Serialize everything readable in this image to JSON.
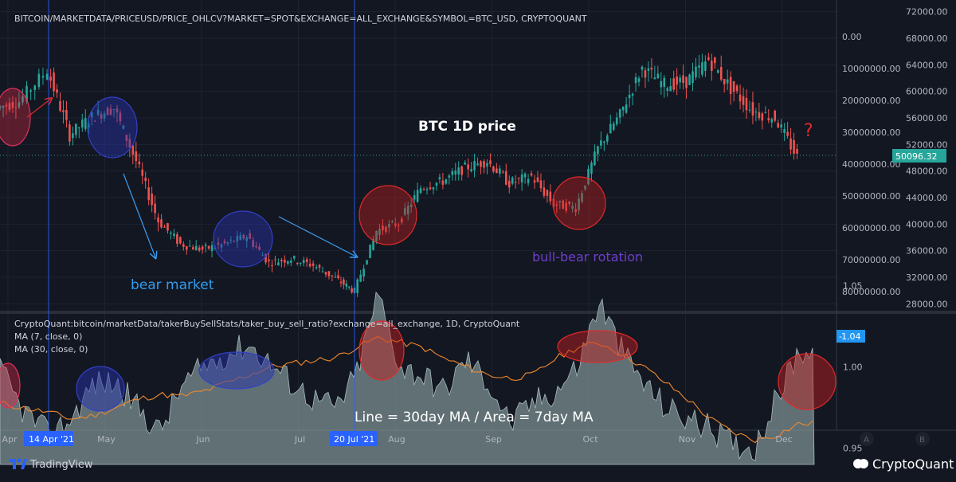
{
  "top_panel": {
    "symbol": "BITCOIN/MARKETDATA/PRICEUSD/PRICE_OHLCV?MARKET=SPOT&EXCHANGE=ALL_EXCHANGE&SYMBOL=BTC_USD, CRYPTOQUANT",
    "title": "BTC 1D price",
    "annotations": {
      "bear": "bear market",
      "rotation": "bull-bear rotation",
      "question": "?"
    },
    "current_price": "50096.32",
    "price_ticks": [
      "72000.00",
      "68000.00",
      "64000.00",
      "60000.00",
      "56000.00",
      "52000.00",
      "48000.00",
      "44000.00",
      "40000.00",
      "36000.00",
      "32000.00",
      "28000.00"
    ],
    "volume_ticks": [
      "0.00",
      "10000000.00",
      "20000000.00",
      "30000000.00",
      "40000000.00",
      "50000000.00",
      "60000000.00",
      "70000000.00",
      "80000000.00"
    ]
  },
  "bottom_panel": {
    "symbol": "CryptoQuant:bitcoin/marketData/takerBuySellStats/taker_buy_sell_ratio?exchange=all_exchange, 1D, CryptoQuant",
    "ma7_label": "MA (7, close, 0)",
    "ma30_label": "MA (30, close, 0)",
    "caption": "Line = 30day MA / Area = 7day MA",
    "current_value": "1.04",
    "ticks": [
      "1.05",
      "1.00",
      "0.95"
    ]
  },
  "x_axis": {
    "labels": [
      "Apr",
      "May",
      "Jun",
      "Jul",
      "Aug",
      "Sep",
      "Oct",
      "Nov",
      "Dec"
    ],
    "markers": [
      "14 Apr '21",
      "20 Jul '21"
    ]
  },
  "footer": {
    "tradingview": "TradingView",
    "cryptoquant": "CryptoQuant",
    "scale_a": "A",
    "scale_b": "B"
  },
  "colors": {
    "background": "#131722",
    "bull_candle": "#26a69a",
    "bear_candle": "#ef5350",
    "ma30_line": "#f0892c",
    "ma7_area": "#8fa8a8",
    "marker_line": "#2962ff",
    "current_price_bg": "#26a69a",
    "current_ratio_bg": "#2196f3"
  },
  "chart_data": [
    {
      "type": "candlestick",
      "title": "BTC 1D price",
      "x": [
        "2021-03-29",
        "2021-04-05",
        "2021-04-14",
        "2021-04-21",
        "2021-04-28",
        "2021-05-05",
        "2021-05-12",
        "2021-05-19",
        "2021-05-26",
        "2021-06-02",
        "2021-06-09",
        "2021-06-16",
        "2021-06-23",
        "2021-06-30",
        "2021-07-07",
        "2021-07-14",
        "2021-07-20",
        "2021-07-27",
        "2021-08-03",
        "2021-08-10",
        "2021-08-17",
        "2021-08-24",
        "2021-08-31",
        "2021-09-07",
        "2021-09-14",
        "2021-09-21",
        "2021-09-28",
        "2021-10-05",
        "2021-10-12",
        "2021-10-19",
        "2021-10-26",
        "2021-11-02",
        "2021-11-09",
        "2021-11-16",
        "2021-11-23",
        "2021-11-30",
        "2021-12-07"
      ],
      "close": [
        57500,
        58500,
        63200,
        53500,
        56200,
        57500,
        49500,
        40500,
        37000,
        36200,
        37000,
        38200,
        34200,
        34800,
        33800,
        31800,
        29900,
        39000,
        40200,
        45500,
        46500,
        48500,
        49500,
        46200,
        47200,
        43000,
        42500,
        51500,
        56500,
        63500,
        61000,
        61500,
        64800,
        60500,
        57000,
        56000,
        50096
      ],
      "ylim": [
        26000,
        74000
      ]
    },
    {
      "type": "area",
      "title": "taker_buy_sell_ratio",
      "x": [
        "2021-03-29",
        "2021-04-05",
        "2021-04-14",
        "2021-04-21",
        "2021-04-28",
        "2021-05-05",
        "2021-05-12",
        "2021-05-19",
        "2021-05-26",
        "2021-06-02",
        "2021-06-09",
        "2021-06-16",
        "2021-06-23",
        "2021-06-30",
        "2021-07-07",
        "2021-07-14",
        "2021-07-20",
        "2021-07-27",
        "2021-08-03",
        "2021-08-10",
        "2021-08-17",
        "2021-08-24",
        "2021-08-31",
        "2021-09-07",
        "2021-09-14",
        "2021-09-21",
        "2021-09-28",
        "2021-10-05",
        "2021-10-12",
        "2021-10-19",
        "2021-10-26",
        "2021-11-02",
        "2021-11-09",
        "2021-11-16",
        "2021-11-23",
        "2021-11-30",
        "2021-12-07"
      ],
      "series": [
        {
          "name": "MA (7, close, 0)",
          "values": [
            1.0,
            0.975,
            0.958,
            0.968,
            0.99,
            0.99,
            0.975,
            0.96,
            0.988,
            1.0,
            1.008,
            1.014,
            1.002,
            0.99,
            0.98,
            0.975,
            0.995,
            1.045,
            1.0,
            0.995,
            0.985,
            1.005,
            0.99,
            0.965,
            0.978,
            0.985,
            1.0,
            1.04,
            1.01,
            0.99,
            0.975,
            0.968,
            0.962,
            0.953,
            0.95,
            0.98,
            1.01
          ]
        },
        {
          "name": "MA (30, close, 0)",
          "values": [
            0.978,
            0.975,
            0.972,
            0.968,
            0.97,
            0.975,
            0.98,
            0.983,
            0.982,
            0.985,
            0.99,
            0.995,
            1.0,
            1.002,
            1.004,
            1.006,
            1.012,
            1.018,
            1.015,
            1.012,
            1.005,
            1.0,
            0.995,
            0.993,
            0.995,
            1.005,
            1.012,
            1.015,
            1.008,
            1.0,
            0.99,
            0.98,
            0.968,
            0.96,
            0.955,
            0.958,
            0.965
          ]
        }
      ],
      "ylim": [
        0.94,
        1.06
      ]
    }
  ]
}
